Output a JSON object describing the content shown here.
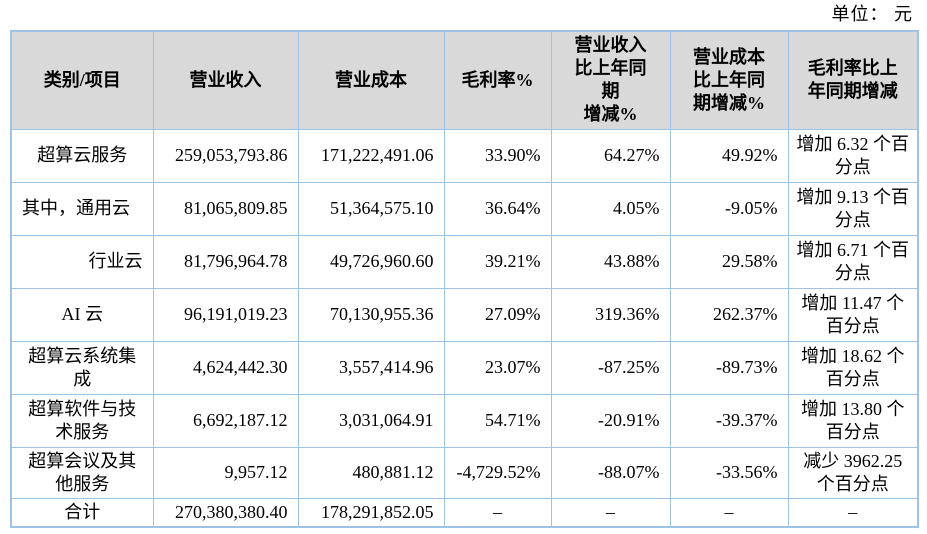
{
  "unit_label": "单位： 元",
  "colors": {
    "border": "#9DC3E6",
    "header_bg": "#D9D9D9",
    "text": "#000000"
  },
  "table": {
    "headers": [
      "类别/项目",
      "营业收入",
      "营业成本",
      "毛利率%",
      "营业收入\n比上年同\n期\n增减%",
      "营业成本\n比上年同\n期增减%",
      "毛利率比上\n年同期增减"
    ],
    "rows": [
      {
        "category": "超算云服务",
        "revenue": "259,053,793.86",
        "cost": "171,222,491.06",
        "margin": "33.90%",
        "rev_change": "64.27%",
        "cost_change": "49.92%",
        "margin_change": "增加 6.32 个百分点"
      },
      {
        "category": "其中，通用云",
        "revenue": "81,065,809.85",
        "cost": "51,364,575.10",
        "margin": "36.64%",
        "rev_change": "4.05%",
        "cost_change": "-9.05%",
        "margin_change": "增加 9.13 个百分点"
      },
      {
        "category": "行业云",
        "revenue": "81,796,964.78",
        "cost": "49,726,960.60",
        "margin": "39.21%",
        "rev_change": "43.88%",
        "cost_change": "29.58%",
        "margin_change": "增加 6.71 个百分点"
      },
      {
        "category": "AI 云",
        "revenue": "96,191,019.23",
        "cost": "70,130,955.36",
        "margin": "27.09%",
        "rev_change": "319.36%",
        "cost_change": "262.37%",
        "margin_change": "增加 11.47 个百分点"
      },
      {
        "category": "超算云系统集成",
        "revenue": "4,624,442.30",
        "cost": "3,557,414.96",
        "margin": "23.07%",
        "rev_change": "-87.25%",
        "cost_change": "-89.73%",
        "margin_change": "增加 18.62 个百分点"
      },
      {
        "category": "超算软件与技术服务",
        "revenue": "6,692,187.12",
        "cost": "3,031,064.91",
        "margin": "54.71%",
        "rev_change": "-20.91%",
        "cost_change": "-39.37%",
        "margin_change": "增加 13.80 个百分点"
      },
      {
        "category": "超算会议及其他服务",
        "revenue": "9,957.12",
        "cost": "480,881.12",
        "margin": "-4,729.52%",
        "rev_change": "-88.07%",
        "cost_change": "-33.56%",
        "margin_change": "减少 3962.25 个百分点"
      },
      {
        "category": "合计",
        "revenue": "270,380,380.40",
        "cost": "178,291,852.05",
        "margin": "–",
        "rev_change": "–",
        "cost_change": "–",
        "margin_change": "–"
      }
    ]
  }
}
